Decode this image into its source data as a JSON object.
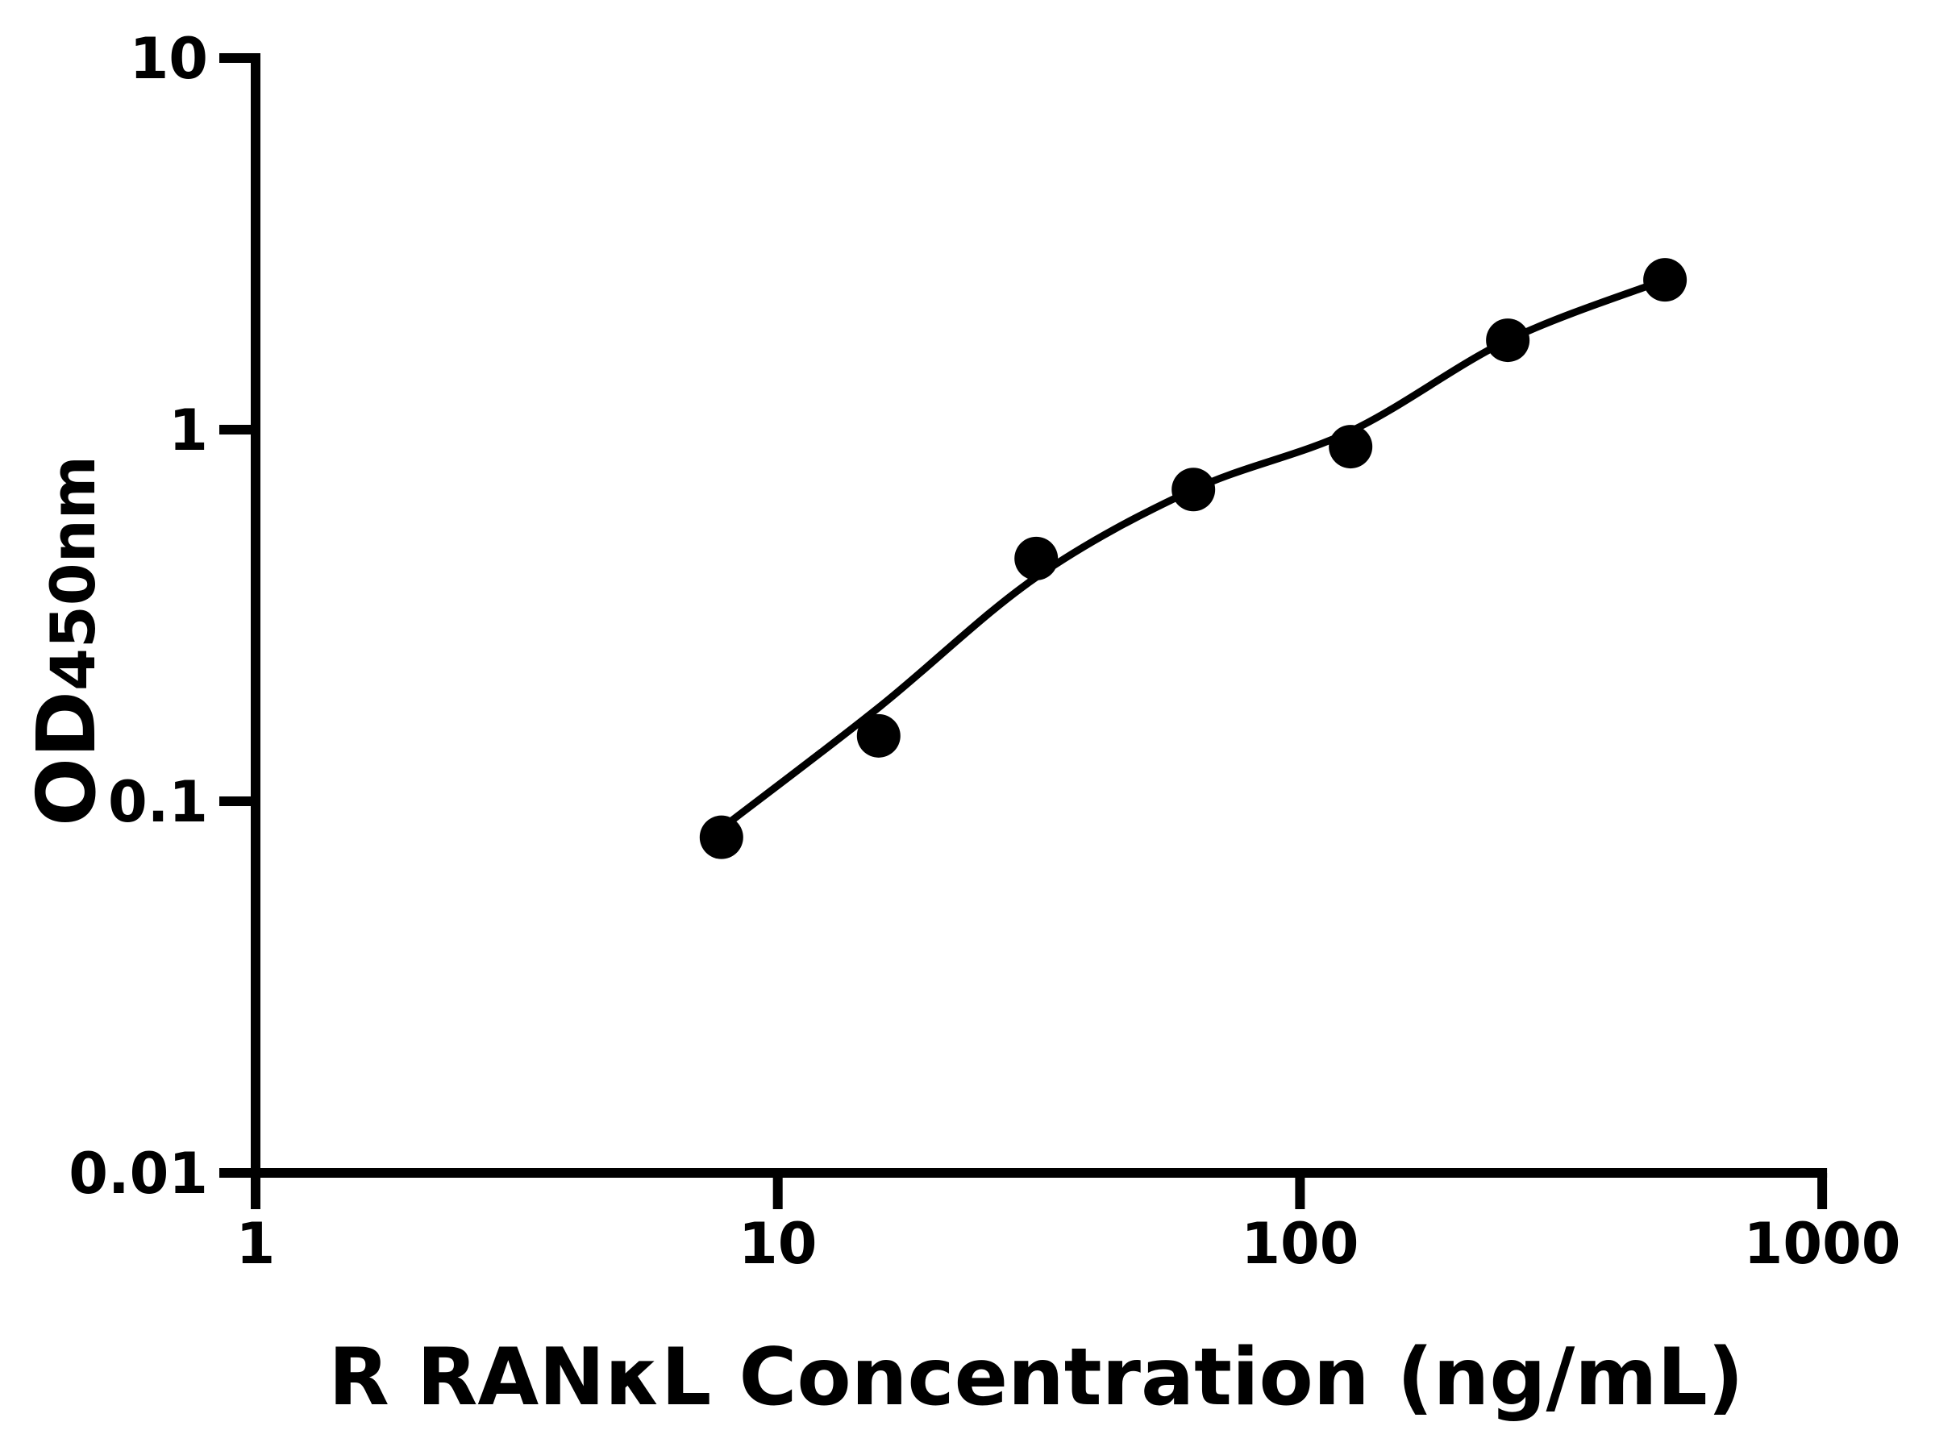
{
  "figure": {
    "background_color": "#ffffff",
    "axis_color": "#000000",
    "point_color": "#000000",
    "curve_color": "#000000"
  },
  "chart_data": {
    "type": "scatter",
    "title": "",
    "xlabel": "R RANκL Concentration (ng/mL)",
    "ylabel": "OD",
    "ylabel_subscript": "450nm",
    "x_scale": "log",
    "y_scale": "log",
    "xlim": [
      1,
      1000
    ],
    "ylim": [
      0.01,
      10
    ],
    "x_ticks": [
      1,
      10,
      100,
      1000
    ],
    "x_tick_labels": [
      "1",
      "10",
      "100",
      "1000"
    ],
    "y_ticks": [
      0.01,
      0.1,
      1,
      10
    ],
    "y_tick_labels": [
      "0.01",
      "0.1",
      "1",
      "10"
    ],
    "grid": false,
    "legend": null,
    "series": [
      {
        "name": "standard-points",
        "type": "scatter",
        "marker": "filled-circle",
        "x": [
          7.8,
          15.6,
          31.25,
          62.5,
          125,
          250,
          500
        ],
        "y": [
          0.08,
          0.15,
          0.45,
          0.69,
          0.9,
          1.74,
          2.53
        ]
      },
      {
        "name": "fit-curve",
        "type": "line",
        "x": [
          8.1,
          15.7,
          31.2,
          62.5,
          125,
          250,
          500
        ],
        "y": [
          0.088,
          0.18,
          0.4,
          0.69,
          0.99,
          1.74,
          2.53
        ]
      }
    ]
  }
}
